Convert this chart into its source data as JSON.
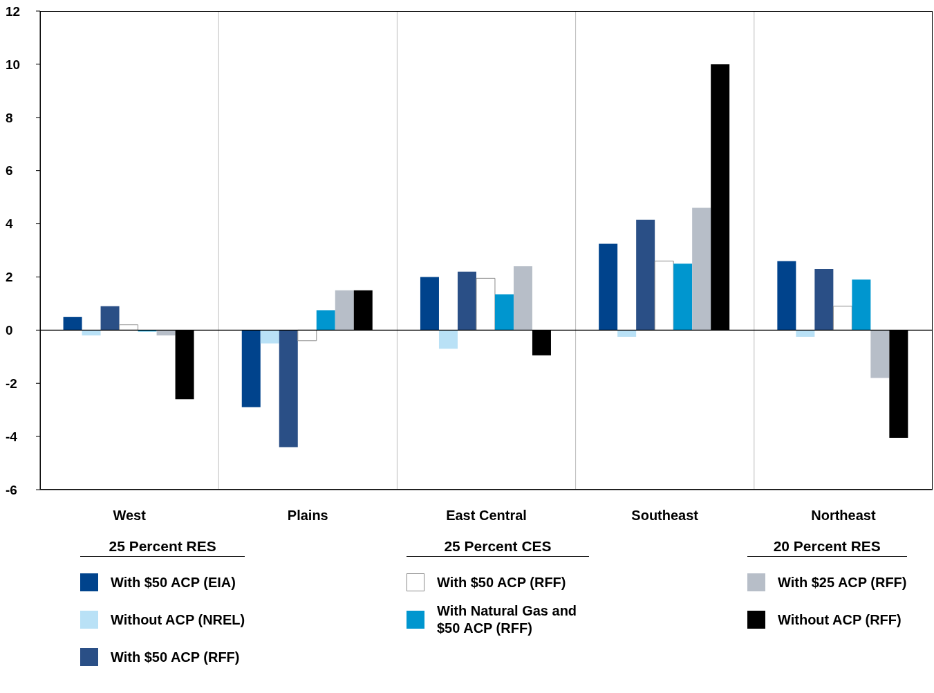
{
  "chart_data": {
    "type": "bar",
    "categories": [
      "West",
      "Plains",
      "East Central",
      "Southeast",
      "Northeast"
    ],
    "series": [
      {
        "name": "With $50 ACP (EIA)",
        "color": "#00438c",
        "values": [
          0.5,
          -2.9,
          2.0,
          3.25,
          2.6
        ]
      },
      {
        "name": "Without ACP (NREL)",
        "color": "#b9e1f6",
        "values": [
          -0.2,
          -0.5,
          -0.7,
          -0.25,
          -0.25
        ]
      },
      {
        "name": "With $50 ACP (RFF)",
        "color": "#2a4f86",
        "values": [
          0.9,
          -4.4,
          2.2,
          4.15,
          2.3
        ]
      },
      {
        "name": "With $50 ACP (RFF)",
        "color": "#ffffff",
        "values": [
          0.2,
          -0.4,
          1.95,
          2.6,
          0.9
        ]
      },
      {
        "name": "With Natural Gas and $50 ACP (RFF)",
        "color": "#0096cf",
        "values": [
          -0.05,
          0.75,
          1.35,
          2.5,
          1.9
        ]
      },
      {
        "name": "With $25 ACP (RFF)",
        "color": "#b7bec8",
        "values": [
          -0.2,
          1.5,
          2.4,
          4.6,
          -1.8
        ]
      },
      {
        "name": "Without ACP (RFF)",
        "color": "#000000",
        "values": [
          -2.6,
          1.5,
          -0.95,
          10.0,
          -4.05
        ]
      }
    ],
    "annotations": [
      "25 Percent RES",
      "25 Percent CES",
      "20 Percent RES"
    ],
    "ylim": [
      -6,
      12
    ],
    "yticks": [
      -6,
      -4,
      -2,
      0,
      2,
      4,
      6,
      8,
      10,
      12
    ],
    "ref_lines": [
      {
        "axis": "y",
        "value": 0
      }
    ],
    "grid": "x",
    "legend": "bottom"
  }
}
